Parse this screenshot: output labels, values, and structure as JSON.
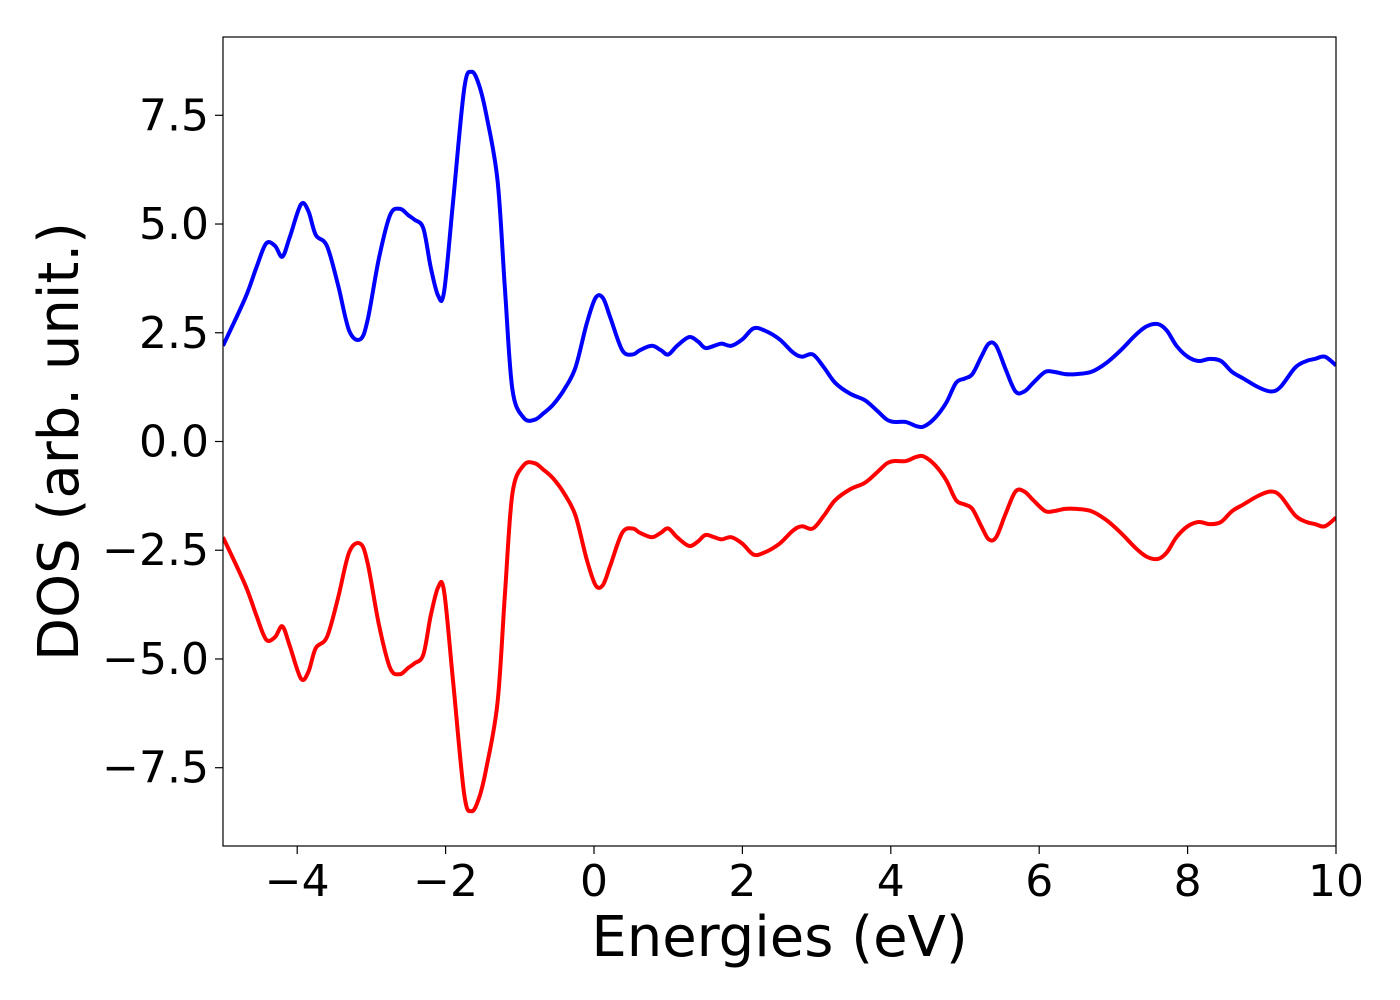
{
  "chart_data": {
    "type": "line",
    "xlabel": "Energies (eV)",
    "ylabel": "DOS (arb. unit.)",
    "xlim": [
      -5,
      10
    ],
    "ylim": [
      -9.3,
      9.3
    ],
    "grid": false,
    "x_ticks": [
      "−4",
      "−2",
      "0",
      "2",
      "4",
      "6",
      "8",
      "10"
    ],
    "x_tick_values": [
      -4,
      -2,
      0,
      2,
      4,
      6,
      8,
      10
    ],
    "y_ticks": [
      "−7.5",
      "−5.0",
      "−2.5",
      "0.0",
      "2.5",
      "5.0",
      "7.5"
    ],
    "y_tick_values": [
      -7.5,
      -5.0,
      -2.5,
      0.0,
      2.5,
      5.0,
      7.5
    ],
    "series": [
      {
        "color": "#0000ff",
        "x": [
          -5.0,
          -4.7,
          -4.55,
          -4.42,
          -4.3,
          -4.2,
          -4.1,
          -3.95,
          -3.85,
          -3.75,
          -3.6,
          -3.45,
          -3.3,
          -3.15,
          -3.05,
          -2.9,
          -2.75,
          -2.62,
          -2.5,
          -2.42,
          -2.3,
          -2.2,
          -2.1,
          -2.02,
          -1.9,
          -1.75,
          -1.65,
          -1.55,
          -1.45,
          -1.3,
          -1.2,
          -1.1,
          -0.95,
          -0.8,
          -0.68,
          -0.55,
          -0.4,
          -0.25,
          -0.1,
          0.02,
          0.12,
          0.22,
          0.38,
          0.52,
          0.62,
          0.78,
          0.9,
          1.0,
          1.12,
          1.28,
          1.4,
          1.5,
          1.62,
          1.72,
          1.85,
          2.0,
          2.15,
          2.3,
          2.5,
          2.68,
          2.8,
          2.95,
          3.1,
          3.25,
          3.45,
          3.65,
          3.82,
          3.95,
          4.05,
          4.2,
          4.35,
          4.45,
          4.6,
          4.75,
          4.88,
          5.0,
          5.1,
          5.22,
          5.32,
          5.42,
          5.55,
          5.68,
          5.8,
          5.92,
          6.08,
          6.2,
          6.35,
          6.5,
          6.7,
          6.9,
          7.1,
          7.3,
          7.45,
          7.6,
          7.72,
          7.85,
          8.0,
          8.15,
          8.3,
          8.45,
          8.6,
          8.75,
          8.95,
          9.12,
          9.25,
          9.45,
          9.6,
          9.72,
          9.85,
          10.0
        ],
        "y": [
          2.2,
          3.3,
          4.0,
          4.55,
          4.5,
          4.25,
          4.7,
          5.45,
          5.3,
          4.75,
          4.5,
          3.6,
          2.55,
          2.35,
          2.8,
          4.2,
          5.2,
          5.35,
          5.2,
          5.1,
          4.9,
          4.0,
          3.35,
          3.45,
          5.5,
          8.1,
          8.5,
          8.2,
          7.5,
          6.0,
          3.5,
          1.2,
          0.55,
          0.5,
          0.65,
          0.85,
          1.2,
          1.7,
          2.7,
          3.3,
          3.3,
          2.85,
          2.1,
          2.0,
          2.1,
          2.2,
          2.1,
          2.0,
          2.2,
          2.4,
          2.3,
          2.15,
          2.2,
          2.25,
          2.2,
          2.35,
          2.6,
          2.55,
          2.35,
          2.05,
          1.95,
          2.0,
          1.7,
          1.35,
          1.1,
          0.95,
          0.7,
          0.5,
          0.45,
          0.45,
          0.35,
          0.35,
          0.55,
          0.9,
          1.35,
          1.45,
          1.55,
          1.95,
          2.25,
          2.2,
          1.65,
          1.15,
          1.15,
          1.35,
          1.6,
          1.6,
          1.55,
          1.55,
          1.6,
          1.8,
          2.1,
          2.45,
          2.65,
          2.7,
          2.55,
          2.2,
          1.95,
          1.85,
          1.9,
          1.85,
          1.6,
          1.45,
          1.25,
          1.15,
          1.25,
          1.7,
          1.85,
          1.9,
          1.95,
          1.75
        ]
      },
      {
        "color": "#ff0000",
        "x": [
          -5.0,
          -4.7,
          -4.55,
          -4.42,
          -4.3,
          -4.2,
          -4.1,
          -3.95,
          -3.85,
          -3.75,
          -3.6,
          -3.45,
          -3.3,
          -3.15,
          -3.05,
          -2.9,
          -2.75,
          -2.62,
          -2.5,
          -2.42,
          -2.3,
          -2.2,
          -2.1,
          -2.02,
          -1.9,
          -1.75,
          -1.65,
          -1.55,
          -1.45,
          -1.3,
          -1.2,
          -1.1,
          -0.95,
          -0.8,
          -0.68,
          -0.55,
          -0.4,
          -0.25,
          -0.1,
          0.02,
          0.12,
          0.22,
          0.38,
          0.52,
          0.62,
          0.78,
          0.9,
          1.0,
          1.12,
          1.28,
          1.4,
          1.5,
          1.62,
          1.72,
          1.85,
          2.0,
          2.15,
          2.3,
          2.5,
          2.68,
          2.8,
          2.95,
          3.1,
          3.25,
          3.45,
          3.65,
          3.82,
          3.95,
          4.05,
          4.2,
          4.35,
          4.45,
          4.6,
          4.75,
          4.88,
          5.0,
          5.1,
          5.22,
          5.32,
          5.42,
          5.55,
          5.68,
          5.8,
          5.92,
          6.08,
          6.2,
          6.35,
          6.5,
          6.7,
          6.9,
          7.1,
          7.3,
          7.45,
          7.6,
          7.72,
          7.85,
          8.0,
          8.15,
          8.3,
          8.45,
          8.6,
          8.75,
          8.95,
          9.12,
          9.25,
          9.45,
          9.6,
          9.72,
          9.85,
          10.0
        ],
        "y": [
          -2.2,
          -3.3,
          -4.0,
          -4.55,
          -4.5,
          -4.25,
          -4.7,
          -5.45,
          -5.3,
          -4.75,
          -4.5,
          -3.6,
          -2.55,
          -2.35,
          -2.8,
          -4.2,
          -5.2,
          -5.35,
          -5.2,
          -5.1,
          -4.9,
          -4.0,
          -3.35,
          -3.45,
          -5.5,
          -8.1,
          -8.5,
          -8.2,
          -7.5,
          -6.0,
          -3.5,
          -1.2,
          -0.55,
          -0.5,
          -0.65,
          -0.85,
          -1.2,
          -1.7,
          -2.7,
          -3.3,
          -3.3,
          -2.85,
          -2.1,
          -2.0,
          -2.1,
          -2.2,
          -2.1,
          -2.0,
          -2.2,
          -2.4,
          -2.3,
          -2.15,
          -2.2,
          -2.25,
          -2.2,
          -2.35,
          -2.6,
          -2.55,
          -2.35,
          -2.05,
          -1.95,
          -2.0,
          -1.7,
          -1.35,
          -1.1,
          -0.95,
          -0.7,
          -0.5,
          -0.45,
          -0.45,
          -0.35,
          -0.35,
          -0.55,
          -0.9,
          -1.35,
          -1.45,
          -1.55,
          -1.95,
          -2.25,
          -2.2,
          -1.65,
          -1.15,
          -1.15,
          -1.35,
          -1.6,
          -1.6,
          -1.55,
          -1.55,
          -1.6,
          -1.8,
          -2.1,
          -2.45,
          -2.65,
          -2.7,
          -2.55,
          -2.2,
          -1.95,
          -1.85,
          -1.9,
          -1.85,
          -1.6,
          -1.45,
          -1.25,
          -1.15,
          -1.25,
          -1.7,
          -1.85,
          -1.9,
          -1.95,
          -1.75
        ]
      }
    ]
  }
}
